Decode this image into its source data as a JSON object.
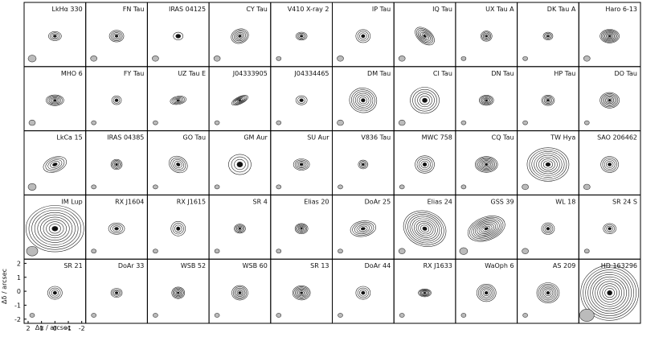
{
  "chart_data": {
    "type": "contour-grid",
    "panels": [
      "LkHα 330",
      "FN Tau",
      "IRAS 04125",
      "CY Tau",
      "V410 X-ray 2",
      "IP Tau",
      "IQ Tau",
      "UX Tau A",
      "DK Tau A",
      "Haro 6-13",
      "MHO 6",
      "FY Tau",
      "UZ Tau E",
      "J04333905",
      "J04334465",
      "DM Tau",
      "CI Tau",
      "DN Tau",
      "HP Tau",
      "DO Tau",
      "LkCa 15",
      "IRAS 04385",
      "GO Tau",
      "GM Aur",
      "SU Aur",
      "V836 Tau",
      "MWC 758",
      "CQ Tau",
      "TW Hya",
      "SAO 206462",
      "IM Lup",
      "RX J1604",
      "RX J1615",
      "SR 4",
      "Elias 20",
      "DoAr 25",
      "Elias 24",
      "GSS 39",
      "WL 18",
      "SR 24 S",
      "SR 21",
      "DoAr 33",
      "WSB 52",
      "WSB 60",
      "SR 13",
      "DoAr 44",
      "RX J1633",
      "WaOph 6",
      "AS 209",
      "HD 163296"
    ],
    "xlabel": "Δα / arcsec",
    "ylabel": "Δδ / arcsec",
    "xlim": [
      2.3,
      -2.3
    ],
    "ylim": [
      -2.3,
      2.3
    ],
    "xticks": [
      2,
      1,
      0,
      -1,
      -2
    ],
    "yticks": [
      2,
      1,
      0,
      -1,
      -2
    ]
  }
}
